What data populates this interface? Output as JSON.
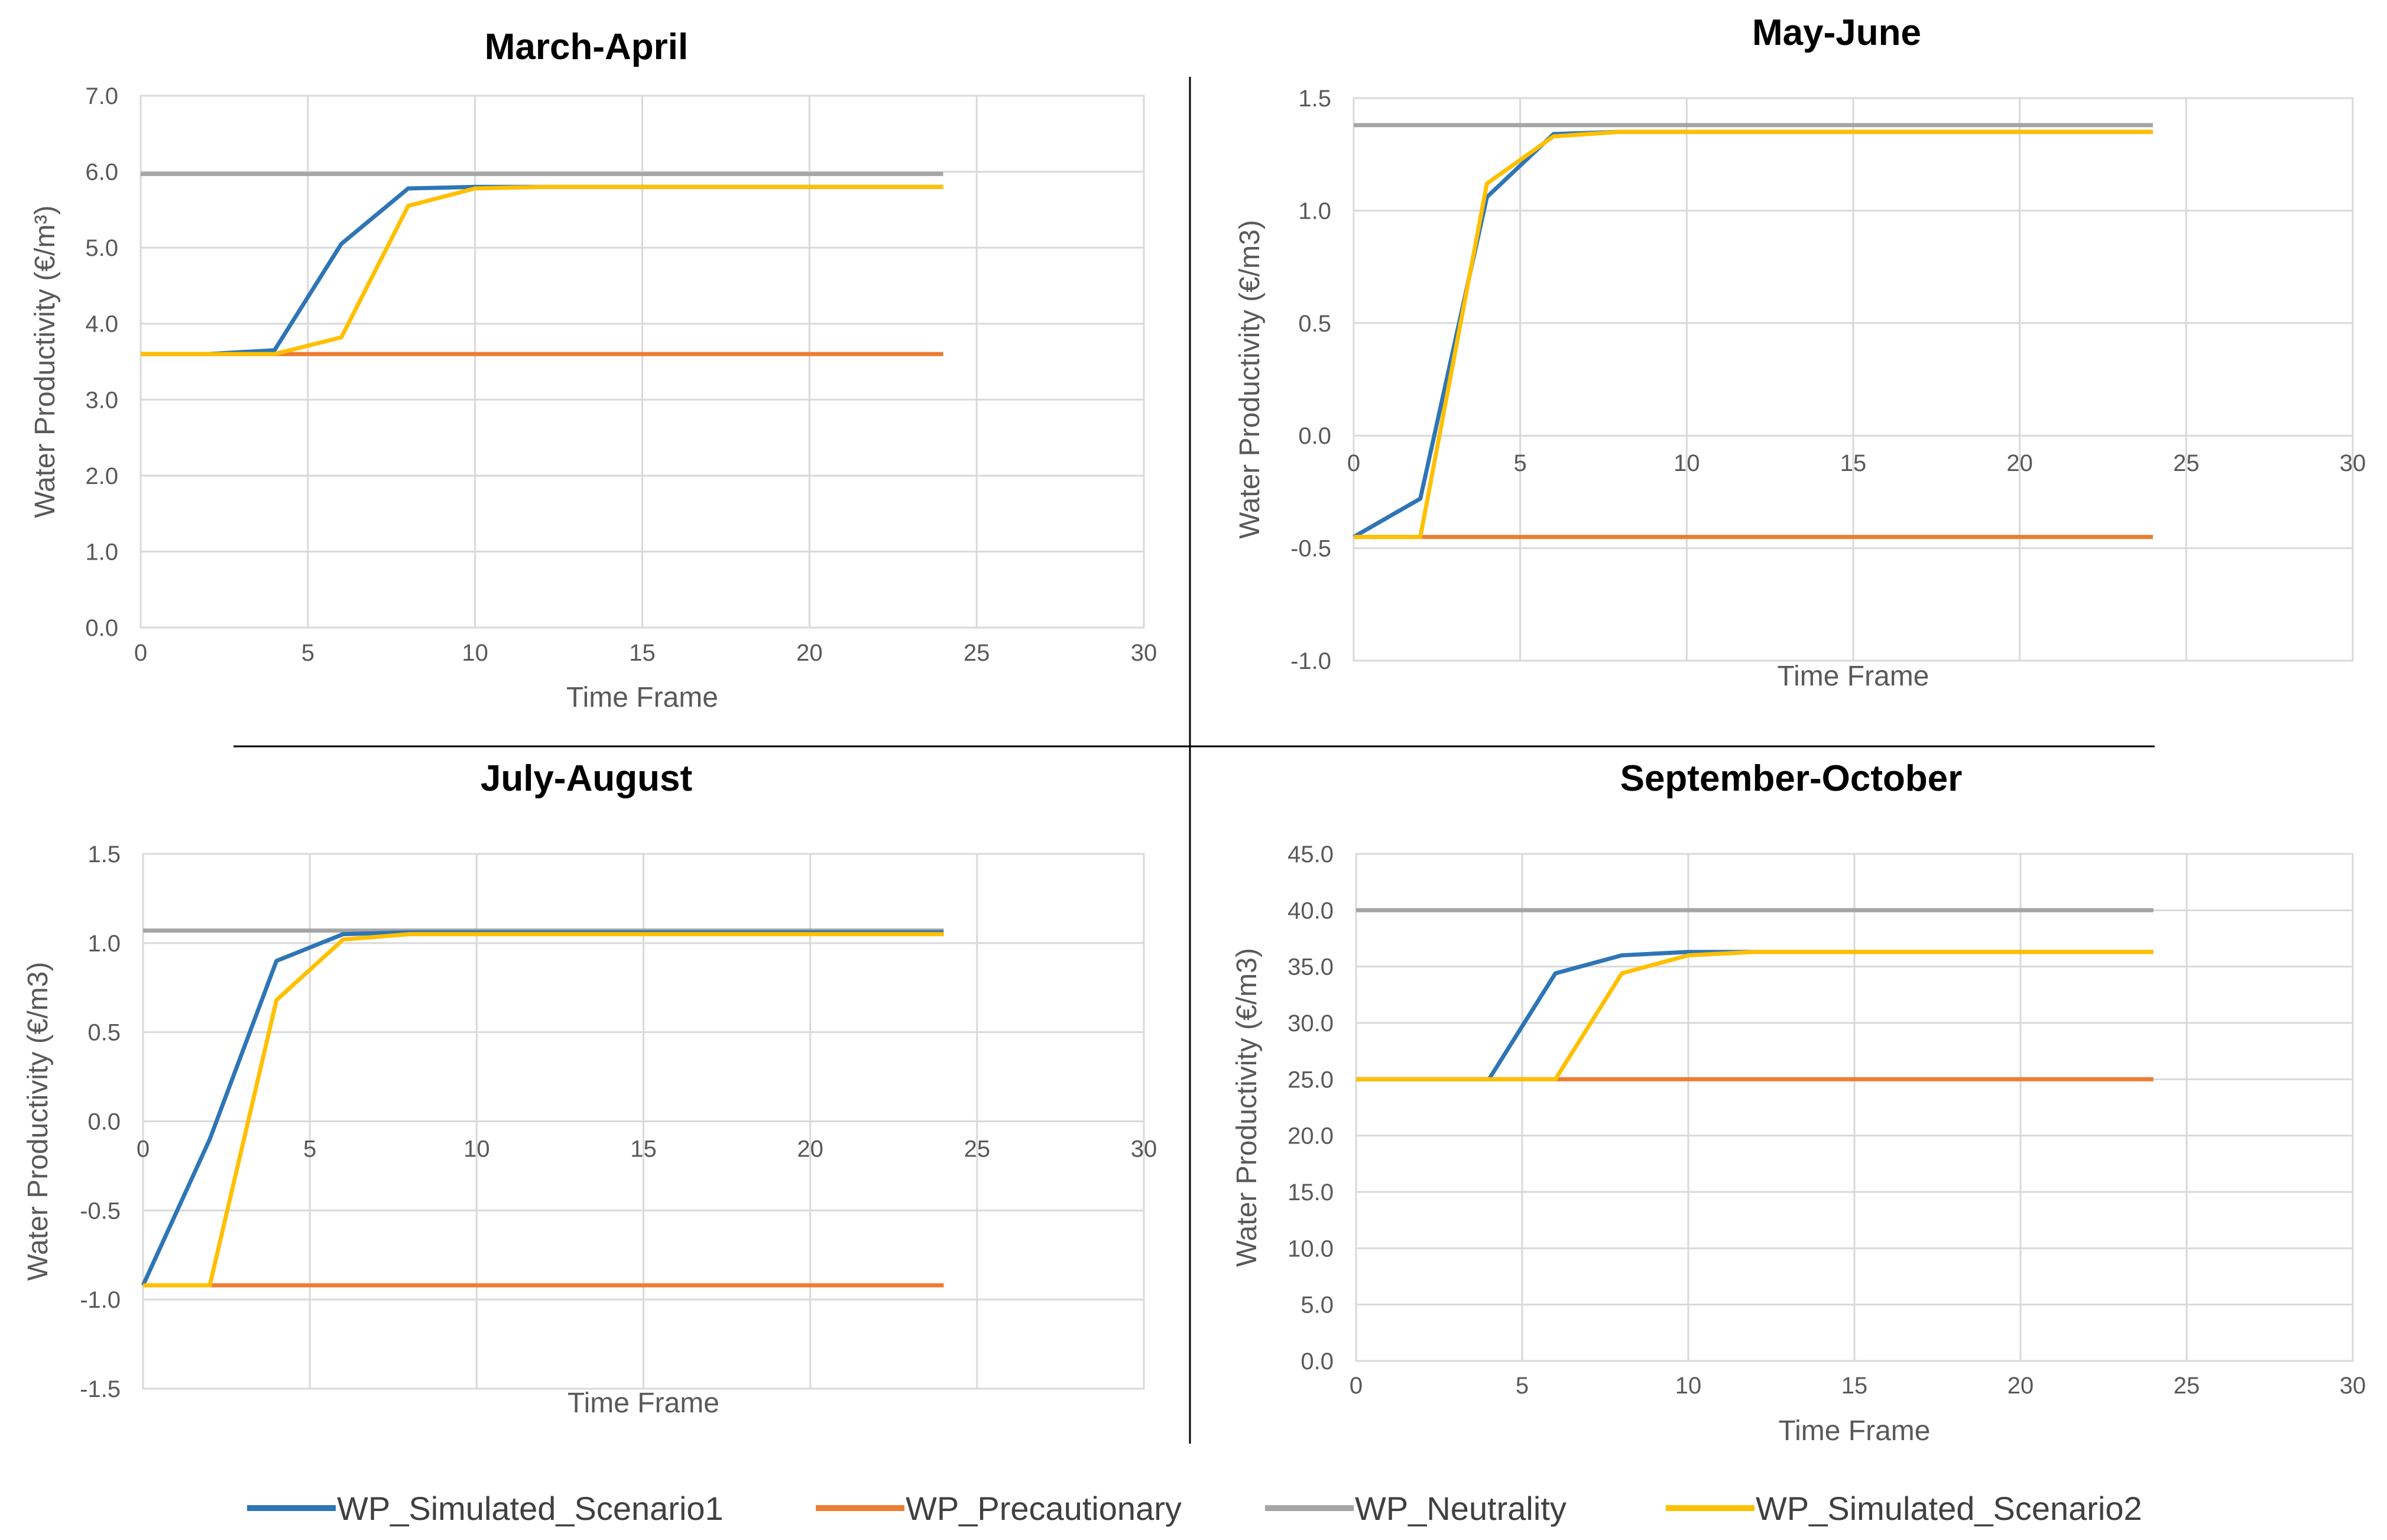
{
  "chart_data": [
    {
      "type": "line",
      "title": "March-April",
      "xlabel": "Time Frame",
      "ylabel": "Water Productivity (€/m³)",
      "xlim": [
        0,
        30
      ],
      "ylim": [
        0,
        7
      ],
      "x_ticks": [
        0,
        5,
        10,
        15,
        20,
        25,
        30
      ],
      "x_tick_labels": [
        "0",
        "5",
        "10",
        "15",
        "20",
        "25",
        "30"
      ],
      "y_ticks": [
        0,
        1,
        2,
        3,
        4,
        5,
        6,
        7
      ],
      "y_tick_labels": [
        "0.0",
        "1.0",
        "2.0",
        "3.0",
        "4.0",
        "5.0",
        "6.0",
        "7.0"
      ],
      "x_axis_at": 0,
      "grid": true,
      "series": [
        {
          "name": "WP_Simulated_Scenario1",
          "x": [
            0,
            2,
            4,
            6,
            8,
            10,
            12,
            24
          ],
          "values": [
            3.6,
            3.6,
            3.65,
            5.05,
            5.78,
            5.8,
            5.8,
            5.8
          ]
        },
        {
          "name": "WP_Precautionary",
          "x": [
            0,
            24
          ],
          "values": [
            3.6,
            3.6
          ]
        },
        {
          "name": "WP_Neutrality",
          "x": [
            0,
            24
          ],
          "values": [
            5.97,
            5.97
          ]
        },
        {
          "name": "WP_Simulated_Scenario2",
          "x": [
            0,
            2,
            4,
            6,
            8,
            10,
            12,
            24
          ],
          "values": [
            3.6,
            3.6,
            3.6,
            3.82,
            5.55,
            5.78,
            5.8,
            5.8
          ]
        }
      ]
    },
    {
      "type": "line",
      "title": "May-June",
      "xlabel": "Time Frame",
      "ylabel": "Water Productivity (€/m3)",
      "xlim": [
        0,
        30
      ],
      "ylim": [
        -1,
        1.5
      ],
      "x_ticks": [
        0,
        5,
        10,
        15,
        20,
        25,
        30
      ],
      "x_tick_labels": [
        "0",
        "5",
        "10",
        "15",
        "20",
        "25",
        "30"
      ],
      "y_ticks": [
        -1,
        -0.5,
        0,
        0.5,
        1,
        1.5
      ],
      "y_tick_labels": [
        "-1.0",
        "-0.5",
        "0.0",
        "0.5",
        "1.0",
        "1.5"
      ],
      "x_axis_at": 0,
      "grid": true,
      "series": [
        {
          "name": "WP_Simulated_Scenario1",
          "x": [
            0,
            2,
            4,
            6,
            8,
            24
          ],
          "values": [
            -0.45,
            -0.28,
            1.06,
            1.34,
            1.35,
            1.35
          ]
        },
        {
          "name": "WP_Precautionary",
          "x": [
            0,
            24
          ],
          "values": [
            -0.45,
            -0.45
          ]
        },
        {
          "name": "WP_Neutrality",
          "x": [
            0,
            24
          ],
          "values": [
            1.38,
            1.38
          ]
        },
        {
          "name": "WP_Simulated_Scenario2",
          "x": [
            0,
            2,
            4,
            6,
            8,
            24
          ],
          "values": [
            -0.45,
            -0.45,
            1.12,
            1.33,
            1.35,
            1.35
          ]
        }
      ]
    },
    {
      "type": "line",
      "title": "July-August",
      "xlabel": "Time Frame",
      "ylabel": "Water Productivity (€/m3)",
      "xlim": [
        0,
        30
      ],
      "ylim": [
        -1.5,
        1.5
      ],
      "x_ticks": [
        0,
        5,
        10,
        15,
        20,
        25,
        30
      ],
      "x_tick_labels": [
        "0",
        "5",
        "10",
        "15",
        "20",
        "25",
        "30"
      ],
      "y_ticks": [
        -1.5,
        -1,
        -0.5,
        0,
        0.5,
        1,
        1.5
      ],
      "y_tick_labels": [
        "-1.5",
        "-1.0",
        "-0.5",
        "0.0",
        "0.5",
        "1.0",
        "1.5"
      ],
      "x_axis_at": 0,
      "grid": true,
      "series": [
        {
          "name": "WP_Simulated_Scenario1",
          "x": [
            0,
            2,
            4,
            6,
            8,
            24
          ],
          "values": [
            -0.92,
            -0.1,
            0.9,
            1.05,
            1.06,
            1.06
          ]
        },
        {
          "name": "WP_Precautionary",
          "x": [
            0,
            24
          ],
          "values": [
            -0.92,
            -0.92
          ]
        },
        {
          "name": "WP_Neutrality",
          "x": [
            0,
            24
          ],
          "values": [
            1.07,
            1.07
          ]
        },
        {
          "name": "WP_Simulated_Scenario2",
          "x": [
            0,
            2,
            4,
            6,
            8,
            24
          ],
          "values": [
            -0.92,
            -0.92,
            0.68,
            1.02,
            1.05,
            1.05
          ]
        }
      ]
    },
    {
      "type": "line",
      "title": "September-October",
      "xlabel": "Time Frame",
      "ylabel": "Water Productivity (€/m3)",
      "xlim": [
        0,
        30
      ],
      "ylim": [
        0,
        45
      ],
      "x_ticks": [
        0,
        5,
        10,
        15,
        20,
        25,
        30
      ],
      "x_tick_labels": [
        "0",
        "5",
        "10",
        "15",
        "20",
        "25",
        "30"
      ],
      "y_ticks": [
        0,
        5,
        10,
        15,
        20,
        25,
        30,
        35,
        40,
        45
      ],
      "y_tick_labels": [
        "0.0",
        "5.0",
        "10.0",
        "15.0",
        "20.0",
        "25.0",
        "30.0",
        "35.0",
        "40.0",
        "45.0"
      ],
      "x_axis_at": 0,
      "grid": true,
      "series": [
        {
          "name": "WP_Simulated_Scenario1",
          "x": [
            0,
            2,
            4,
            6,
            8,
            10,
            12,
            24
          ],
          "values": [
            25,
            25,
            25,
            34.4,
            36,
            36.3,
            36.3,
            36.3
          ]
        },
        {
          "name": "WP_Precautionary",
          "x": [
            0,
            24
          ],
          "values": [
            25,
            25
          ]
        },
        {
          "name": "WP_Neutrality",
          "x": [
            0,
            24
          ],
          "values": [
            40,
            40
          ]
        },
        {
          "name": "WP_Simulated_Scenario2",
          "x": [
            0,
            2,
            4,
            6,
            8,
            10,
            12,
            24
          ],
          "values": [
            25,
            25,
            25,
            25,
            34.4,
            36,
            36.3,
            36.3
          ]
        }
      ]
    }
  ],
  "legend": {
    "placement": "bottom-center",
    "items": [
      {
        "name": "WP_Simulated_Scenario1",
        "color": "#2E75B6"
      },
      {
        "name": "WP_Precautionary",
        "color": "#ED7D31"
      },
      {
        "name": "WP_Neutrality",
        "color": "#A5A5A5"
      },
      {
        "name": "WP_Simulated_Scenario2",
        "color": "#FFC000"
      }
    ]
  }
}
